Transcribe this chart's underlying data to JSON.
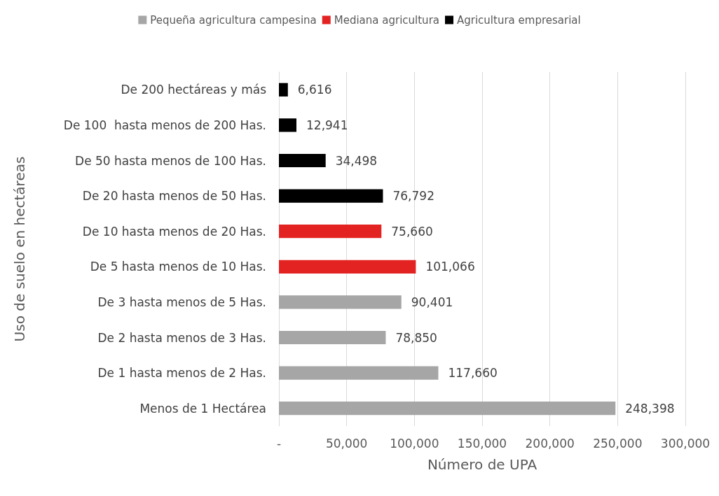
{
  "chart_data": {
    "type": "bar",
    "orientation": "horizontal",
    "stacked": true,
    "xlabel": "Número de UPA",
    "ylabel": "Uso de suelo en hectáreas",
    "categories": [
      "De 200 hectáreas y más",
      "De 100  hasta menos de 200 Has.",
      "De 50 hasta menos de 100 Has.",
      "De 20 hasta menos de 50 Has.",
      "De 10 hasta menos de 20 Has.",
      "De 5 hasta menos de 10 Has.",
      "De 3 hasta menos de 5 Has.",
      "De 2 hasta menos de 3 Has.",
      "De 1 hasta menos de 2 Has.",
      "Menos de 1 Hectárea"
    ],
    "series": [
      {
        "name": "Pequeña agricultura campesina",
        "color": "#a6a6a6",
        "values": [
          null,
          null,
          null,
          null,
          null,
          null,
          90401,
          78850,
          117660,
          248398
        ],
        "value_labels": [
          null,
          null,
          null,
          null,
          null,
          null,
          "90,401",
          "78,850",
          "117,660",
          "248,398"
        ]
      },
      {
        "name": "Mediana agricultura",
        "color": "#e32322",
        "values": [
          null,
          null,
          null,
          null,
          75660,
          101066,
          null,
          null,
          null,
          null
        ],
        "value_labels": [
          null,
          null,
          null,
          null,
          "75,660",
          "101,066",
          null,
          null,
          null,
          null
        ]
      },
      {
        "name": "Agricultura empresarial",
        "color": "#000000",
        "values": [
          6616,
          12941,
          34498,
          76792,
          null,
          null,
          null,
          null,
          null,
          null
        ],
        "value_labels": [
          "6,616",
          "12,941",
          "34,498",
          "76,792",
          null,
          null,
          null,
          null,
          null,
          null
        ]
      }
    ],
    "xlim": [
      0,
      300000
    ],
    "xticks": [
      {
        "value": 0,
        "label": "-"
      },
      {
        "value": 50000,
        "label": "50,000"
      },
      {
        "value": 100000,
        "label": "100,000"
      },
      {
        "value": 150000,
        "label": "150,000"
      },
      {
        "value": 200000,
        "label": "200,000"
      },
      {
        "value": 250000,
        "label": "250,000"
      },
      {
        "value": 300000,
        "label": "300,000"
      }
    ],
    "grid": "x",
    "legend": "top"
  }
}
